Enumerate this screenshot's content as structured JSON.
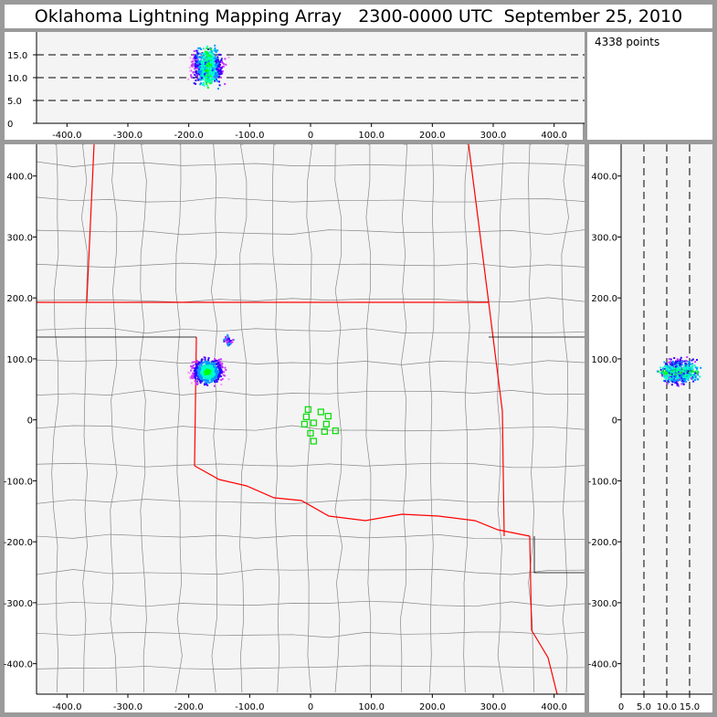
{
  "title": "Oklahoma Lightning Mapping Array   2300-0000 UTC  September 25, 2010",
  "info": {
    "points_label": "4338 points"
  },
  "chart_data": [
    {
      "type": "scatter",
      "panel": "altitude-vs-east-west",
      "xlim": [
        -450,
        450
      ],
      "ylim": [
        0,
        20
      ],
      "xticks": [
        -400,
        -300,
        -200,
        -100,
        0,
        100,
        200,
        300,
        400
      ],
      "xtick_labels": [
        "-400.0",
        "-300.0",
        "-200.0",
        "-100.0",
        "0",
        "100.0",
        "200.0",
        "300.0",
        "400.0"
      ],
      "yticks": [
        0,
        5,
        10,
        15
      ],
      "ytick_labels": [
        "0",
        "5.0",
        "10.0",
        "15.0"
      ],
      "gridlines_dashed": [
        5,
        10,
        15
      ]
    },
    {
      "type": "scatter",
      "panel": "plan-view-map",
      "xlim": [
        -450,
        450
      ],
      "ylim": [
        -450,
        452
      ],
      "xticks": [
        -400,
        -300,
        -200,
        -100,
        0,
        100,
        200,
        300,
        400
      ],
      "xtick_labels": [
        "-400.0",
        "-300.0",
        "-200.0",
        "-100.0",
        "0",
        "100.0",
        "200.0",
        "300.0",
        "400.0"
      ],
      "yticks": [
        -400,
        -300,
        -200,
        -100,
        0,
        100,
        200,
        300,
        400
      ],
      "ytick_labels": [
        "-400.0",
        "-300.0",
        "-200.0",
        "-100.0",
        "0",
        "100.0",
        "200.0",
        "300.0",
        "400.0"
      ],
      "source_cluster": {
        "x": -170,
        "y": 80
      },
      "secondary_cluster": {
        "x": -135,
        "y": 130
      },
      "stations": [
        [
          -4,
          17
        ],
        [
          -7,
          5
        ],
        [
          -10,
          -7
        ],
        [
          5,
          -5
        ],
        [
          17,
          13
        ],
        [
          29,
          6
        ],
        [
          26,
          -7
        ],
        [
          23,
          -19
        ],
        [
          41,
          -18
        ],
        [
          5,
          -35
        ],
        [
          0,
          -22
        ]
      ],
      "station_color": "#00dd00",
      "state_border_color": "#ff0000",
      "county_color": "#888888"
    },
    {
      "type": "scatter",
      "panel": "north-south-vs-altitude",
      "xlim": [
        0,
        20
      ],
      "ylim": [
        -450,
        452
      ],
      "xticks": [
        0,
        5,
        10,
        15
      ],
      "xtick_labels": [
        "0",
        "5.0",
        "10.0",
        "15.0"
      ],
      "yticks": [
        -400,
        -300,
        -200,
        -100,
        0,
        100,
        200,
        300,
        400
      ],
      "ytick_labels": [
        "-400.0",
        "-300.0",
        "-200.0",
        "-100.0",
        "0",
        "100.0",
        "200.0",
        "300.0",
        "400.0"
      ],
      "gridlines_dashed": [
        5,
        10,
        15
      ]
    }
  ],
  "density_colors": [
    "#ff99ff",
    "#cc33ff",
    "#3300ff",
    "#0099ff",
    "#00ffcc",
    "#00ff00"
  ],
  "source_altitude_km": 12.5
}
